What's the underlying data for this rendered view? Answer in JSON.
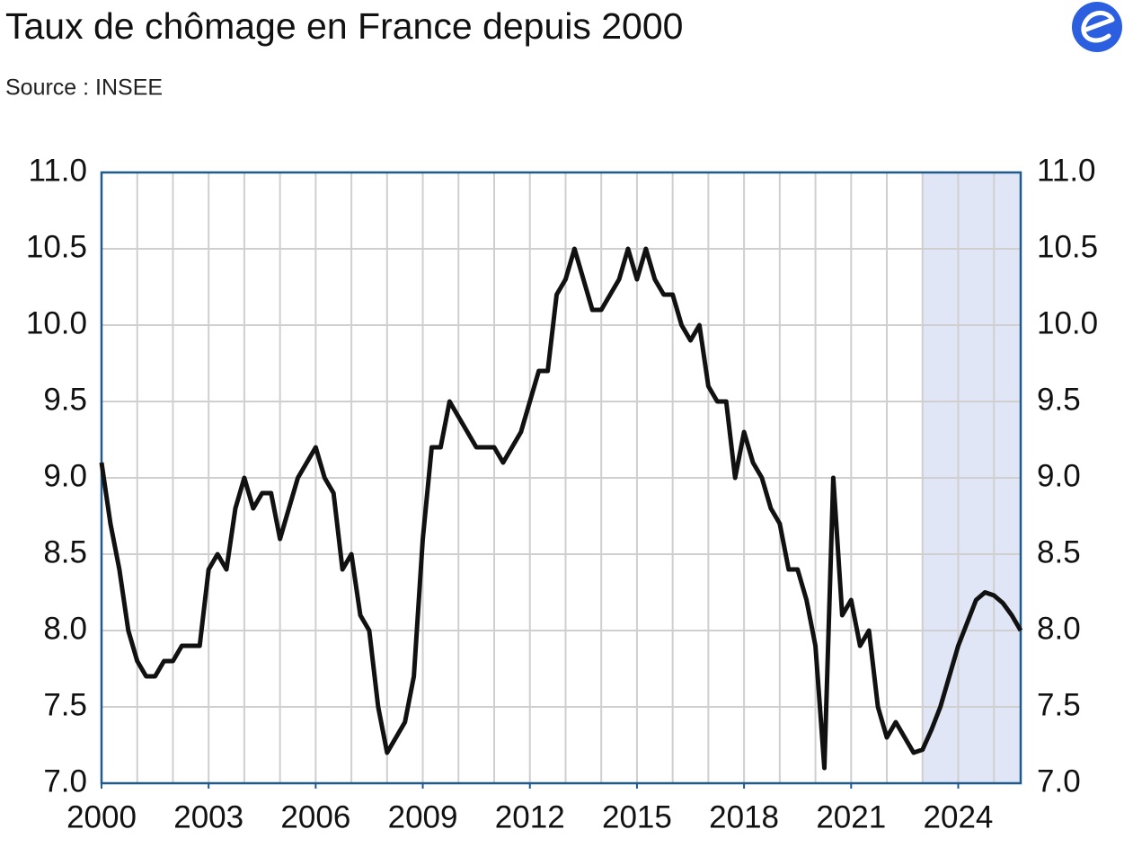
{
  "chart_data": {
    "type": "line",
    "title": "Taux de chômage en France depuis 2000",
    "subtitle": "Source : INSEE",
    "x": [
      2000,
      2000.25,
      2000.5,
      2000.75,
      2001,
      2001.25,
      2001.5,
      2001.75,
      2002,
      2002.25,
      2002.5,
      2002.75,
      2003,
      2003.25,
      2003.5,
      2003.75,
      2004,
      2004.25,
      2004.5,
      2004.75,
      2005,
      2005.25,
      2005.5,
      2005.75,
      2006,
      2006.25,
      2006.5,
      2006.75,
      2007,
      2007.25,
      2007.5,
      2007.75,
      2008,
      2008.25,
      2008.5,
      2008.75,
      2009,
      2009.25,
      2009.5,
      2009.75,
      2010,
      2010.25,
      2010.5,
      2010.75,
      2011,
      2011.25,
      2011.5,
      2011.75,
      2012,
      2012.25,
      2012.5,
      2012.75,
      2013,
      2013.25,
      2013.5,
      2013.75,
      2014,
      2014.25,
      2014.5,
      2014.75,
      2015,
      2015.25,
      2015.5,
      2015.75,
      2016,
      2016.25,
      2016.5,
      2016.75,
      2017,
      2017.25,
      2017.5,
      2017.75,
      2018,
      2018.25,
      2018.5,
      2018.75,
      2019,
      2019.25,
      2019.5,
      2019.75,
      2020,
      2020.25,
      2020.5,
      2020.75,
      2021,
      2021.25,
      2021.5,
      2021.75,
      2022,
      2022.25,
      2022.5,
      2022.75,
      2023,
      2023.25,
      2023.5,
      2023.75,
      2024,
      2024.25,
      2024.5,
      2024.75,
      2025,
      2025.25,
      2025.5,
      2025.75
    ],
    "series": [
      {
        "name": "Taux de chômage",
        "color": "#111111",
        "values": [
          9.1,
          8.7,
          8.4,
          8.0,
          7.8,
          7.7,
          7.7,
          7.8,
          7.8,
          7.9,
          7.9,
          7.9,
          8.4,
          8.5,
          8.4,
          8.8,
          9.0,
          8.8,
          8.9,
          8.9,
          8.6,
          8.8,
          9.0,
          9.1,
          9.2,
          9.0,
          8.9,
          8.4,
          8.5,
          8.1,
          8.0,
          7.5,
          7.2,
          7.3,
          7.4,
          7.7,
          8.6,
          9.2,
          9.2,
          9.5,
          9.4,
          9.3,
          9.2,
          9.2,
          9.2,
          9.1,
          9.2,
          9.3,
          9.5,
          9.7,
          9.7,
          10.2,
          10.3,
          10.5,
          10.3,
          10.1,
          10.1,
          10.2,
          10.3,
          10.5,
          10.3,
          10.5,
          10.3,
          10.2,
          10.2,
          10.0,
          9.9,
          10.0,
          9.6,
          9.5,
          9.5,
          9.0,
          9.3,
          9.1,
          9.0,
          8.8,
          8.7,
          8.4,
          8.4,
          8.2,
          7.9,
          7.1,
          9.0,
          8.1,
          8.2,
          7.9,
          8.0,
          7.5,
          7.3,
          7.4,
          7.3,
          7.2,
          7.22,
          7.35,
          7.5,
          7.7,
          7.9,
          8.05,
          8.2,
          8.25,
          8.23,
          8.18,
          8.1,
          8.0
        ]
      }
    ],
    "xlim": [
      2000,
      2025.75
    ],
    "xticks": [
      2000,
      2003,
      2006,
      2009,
      2012,
      2015,
      2018,
      2021,
      2024
    ],
    "xgrid": [
      2001,
      2002,
      2003,
      2004,
      2005,
      2006,
      2007,
      2008,
      2009,
      2010,
      2011,
      2012,
      2013,
      2014,
      2015,
      2016,
      2017,
      2018,
      2019,
      2020,
      2021,
      2022,
      2023,
      2024,
      2025
    ],
    "ylim": [
      7,
      11
    ],
    "yticks": [
      {
        "value": 7,
        "label": "7.0"
      },
      7.5,
      {
        "value": 8,
        "label": "8.0"
      },
      8.5,
      {
        "value": 9,
        "label": "9.0"
      },
      9.5,
      {
        "value": 10,
        "label": "10.0"
      },
      10.5,
      {
        "value": 11,
        "label": "11.0"
      }
    ],
    "shaded_region": [
      2023,
      2025.75
    ],
    "shade_color": "#e0e6f6",
    "grid": true,
    "right_axis_labels": true
  }
}
